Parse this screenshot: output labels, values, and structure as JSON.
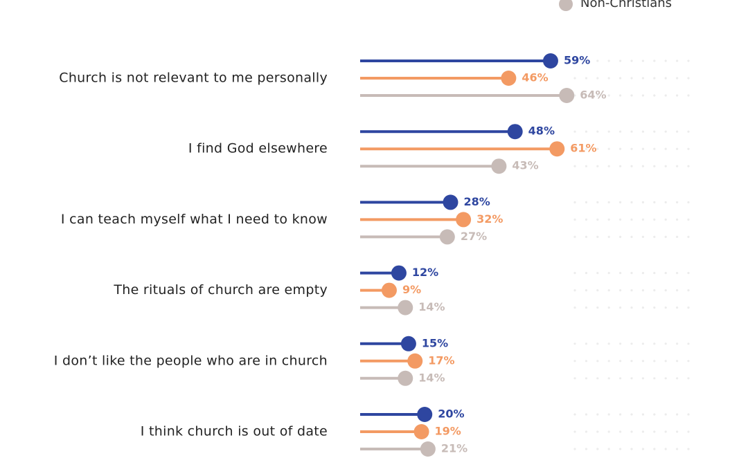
{
  "chart_data": {
    "type": "lollipop",
    "categories": [
      "Church is not relevant to me personally",
      "I find God elsewhere",
      "I can teach myself what I need to know",
      "The rituals of church are empty",
      "I don’t like the people who are in church",
      "I think church is out of date"
    ],
    "series": [
      {
        "color": "#2e46a0",
        "values": [
          59,
          48,
          28,
          12,
          15,
          20
        ],
        "value_labels": [
          "59%",
          "48%",
          "28%",
          "12%",
          "15%",
          "20%"
        ]
      },
      {
        "color": "#f39a63",
        "values": [
          46,
          61,
          32,
          9,
          17,
          19
        ],
        "value_labels": [
          "46%",
          "61%",
          "32%",
          "9%",
          "17%",
          "19%"
        ]
      },
      {
        "name": "Non-Christians",
        "color": "#c7bbb7",
        "values": [
          64,
          43,
          27,
          14,
          14,
          21
        ],
        "value_labels": [
          "64%",
          "43%",
          "27%",
          "14%",
          "14%",
          "21%"
        ]
      }
    ]
  }
}
